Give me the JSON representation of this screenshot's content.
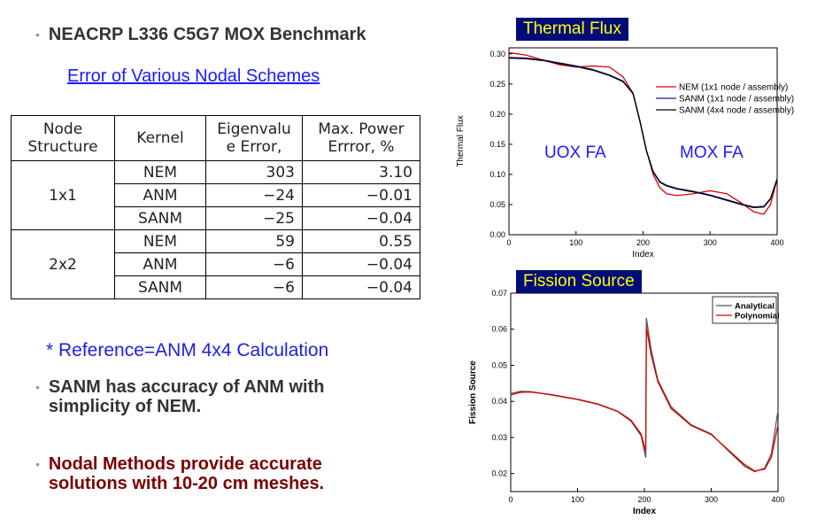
{
  "title": "NEACRP L336 C5G7 MOX Benchmark",
  "subtitle": "Error of Various Nodal Schemes",
  "table": {
    "headers": [
      "Node\nStructure",
      "Kernel",
      "Eigenvalu\ne Error,",
      "Max. Power\nErrror, %"
    ],
    "groups": [
      {
        "node": "1x1",
        "rows": [
          [
            "NEM",
            "303",
            "3.10"
          ],
          [
            "ANM",
            "−24",
            "−0.01"
          ],
          [
            "SANM",
            "−25",
            "−0.04"
          ]
        ]
      },
      {
        "node": "2x2",
        "rows": [
          [
            "NEM",
            "59",
            "0.55"
          ],
          [
            "ANM",
            "−6",
            "−0.04"
          ],
          [
            "SANM",
            "−6",
            "−0.04"
          ]
        ]
      }
    ]
  },
  "reference_note": "* Reference=ANM 4x4 Calculation",
  "bullets": [
    "SANM has accuracy of ANM with\nsimplicity of NEM.",
    "Nodal Methods provide accurate\nsolutions with 10-20 cm meshes."
  ],
  "chart_data": [
    {
      "type": "line",
      "panel_label": "Thermal Flux",
      "xlabel": "Index",
      "ylabel": "Thermal Flux",
      "xlim": [
        0,
        400
      ],
      "ylim": [
        0,
        0.31
      ],
      "xticks": [
        "0",
        "100",
        "200",
        "300",
        "400"
      ],
      "yticks": [
        "0.00",
        "0.05",
        "0.10",
        "0.15",
        "0.20",
        "0.25",
        "0.30"
      ],
      "annotations": [
        "UOX FA",
        "MOX FA"
      ],
      "legend_position": "right",
      "series": [
        {
          "name": "NEM   (1x1 node / assembly)",
          "color": "#e00000",
          "x": [
            0,
            25,
            50,
            75,
            100,
            125,
            150,
            170,
            185,
            195,
            205,
            215,
            225,
            235,
            250,
            275,
            300,
            325,
            350,
            365,
            380,
            390,
            400
          ],
          "y": [
            0.302,
            0.298,
            0.29,
            0.282,
            0.278,
            0.28,
            0.278,
            0.262,
            0.235,
            0.19,
            0.14,
            0.1,
            0.078,
            0.068,
            0.065,
            0.068,
            0.073,
            0.068,
            0.05,
            0.038,
            0.034,
            0.05,
            0.093
          ]
        },
        {
          "name": "SANM (1x1 node / assembly)",
          "color": "#1a1aa0",
          "x": [
            0,
            25,
            50,
            75,
            100,
            125,
            150,
            170,
            185,
            195,
            205,
            215,
            225,
            235,
            250,
            275,
            300,
            325,
            350,
            365,
            380,
            390,
            400
          ],
          "y": [
            0.294,
            0.293,
            0.29,
            0.285,
            0.28,
            0.274,
            0.265,
            0.255,
            0.235,
            0.19,
            0.14,
            0.105,
            0.088,
            0.082,
            0.077,
            0.072,
            0.066,
            0.058,
            0.05,
            0.046,
            0.047,
            0.06,
            0.093
          ]
        },
        {
          "name": "SANM (4x4 node / assembly)",
          "color": "#000000",
          "x": [
            0,
            25,
            50,
            75,
            100,
            125,
            150,
            170,
            185,
            195,
            205,
            215,
            225,
            235,
            250,
            275,
            300,
            325,
            350,
            365,
            380,
            390,
            400
          ],
          "y": [
            0.293,
            0.292,
            0.289,
            0.284,
            0.279,
            0.273,
            0.264,
            0.254,
            0.234,
            0.19,
            0.139,
            0.104,
            0.087,
            0.081,
            0.076,
            0.071,
            0.065,
            0.057,
            0.049,
            0.045,
            0.046,
            0.059,
            0.092
          ]
        }
      ]
    },
    {
      "type": "line",
      "panel_label": "Fission Source",
      "xlabel": "Index",
      "ylabel": "Fission Source",
      "xlim": [
        0,
        400
      ],
      "ylim": [
        0.015,
        0.07
      ],
      "xticks": [
        "0",
        "100",
        "200",
        "300",
        "400"
      ],
      "yticks": [
        "0.02",
        "0.03",
        "0.04",
        "0.05",
        "0.06",
        "0.07"
      ],
      "legend_position": "top-right",
      "series": [
        {
          "name": "Analytical",
          "color": "#555555",
          "x": [
            0,
            15,
            30,
            60,
            100,
            130,
            160,
            180,
            195,
            202,
            203,
            210,
            220,
            240,
            270,
            300,
            330,
            350,
            365,
            380,
            390,
            400
          ],
          "y": [
            0.0422,
            0.0428,
            0.0427,
            0.0418,
            0.0405,
            0.0392,
            0.0372,
            0.0345,
            0.0305,
            0.0245,
            0.063,
            0.0545,
            0.046,
            0.0385,
            0.0335,
            0.031,
            0.0255,
            0.022,
            0.0205,
            0.0215,
            0.0255,
            0.0375
          ]
        },
        {
          "name": "Polynomial",
          "color": "#e00000",
          "x": [
            0,
            15,
            30,
            60,
            100,
            130,
            160,
            180,
            195,
            202,
            203,
            210,
            220,
            240,
            270,
            300,
            330,
            350,
            365,
            380,
            390,
            400
          ],
          "y": [
            0.0418,
            0.0425,
            0.0426,
            0.0419,
            0.0406,
            0.0393,
            0.0373,
            0.0348,
            0.031,
            0.0262,
            0.0605,
            0.053,
            0.0455,
            0.038,
            0.0333,
            0.0308,
            0.0258,
            0.0225,
            0.0207,
            0.0212,
            0.0245,
            0.0335
          ]
        }
      ]
    }
  ]
}
